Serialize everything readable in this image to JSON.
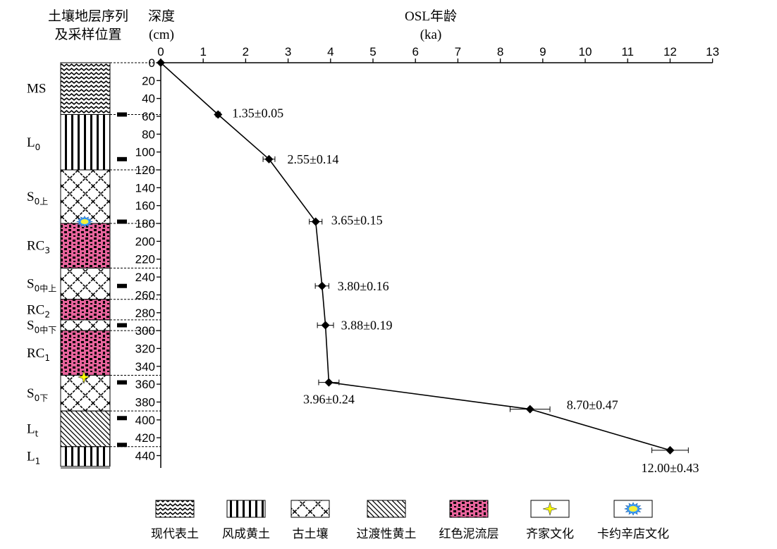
{
  "header": {
    "column_title_line1": "土壤地层序列",
    "column_title_line2": "及采样位置",
    "depth_title": "深度",
    "depth_unit": "(cm)",
    "age_title": "OSL年龄",
    "age_unit": "(ka)"
  },
  "chart_data": {
    "type": "line",
    "x_axis": {
      "label": "OSL年龄",
      "unit": "(ka)",
      "position": "top",
      "range": [
        0,
        13
      ],
      "ticks": [
        "0",
        "1",
        "2",
        "3",
        "4",
        "5",
        "6",
        "7",
        "8",
        "9",
        "10",
        "11",
        "12",
        "13"
      ]
    },
    "y_axis": {
      "label": "深度",
      "unit": "(cm)",
      "inverted": true,
      "range": [
        0,
        440
      ],
      "ticks": [
        "0",
        "20",
        "40",
        "60",
        "80",
        "100",
        "120",
        "140",
        "160",
        "180",
        "200",
        "220",
        "240",
        "260",
        "280",
        "300",
        "320",
        "340",
        "360",
        "380",
        "400",
        "420",
        "440"
      ]
    },
    "points": [
      {
        "depth": 0,
        "age": 0,
        "error": 0,
        "label": ""
      },
      {
        "depth": 58,
        "age": 1.35,
        "error": 0.05,
        "label": "1.35±0.05"
      },
      {
        "depth": 108,
        "age": 2.55,
        "error": 0.14,
        "label": "2.55±0.14"
      },
      {
        "depth": 178,
        "age": 3.65,
        "error": 0.15,
        "label": "3.65±0.15"
      },
      {
        "depth": 250,
        "age": 3.8,
        "error": 0.16,
        "label": "3.80±0.16"
      },
      {
        "depth": 294,
        "age": 3.88,
        "error": 0.19,
        "label": "3.88±0.19"
      },
      {
        "depth": 358,
        "age": 3.96,
        "error": 0.24,
        "label": "3.96±0.24"
      },
      {
        "depth": 388,
        "age": 8.7,
        "error": 0.47,
        "label": "8.70±0.47"
      },
      {
        "depth": 434,
        "age": 12.0,
        "error": 0.43,
        "label": "12.00±0.43"
      }
    ]
  },
  "strata": [
    {
      "name": "MS",
      "sub": "",
      "top": 0,
      "bottom": 58,
      "pattern": "modern"
    },
    {
      "name": "L",
      "sub": "0",
      "top": 58,
      "bottom": 120,
      "pattern": "loess"
    },
    {
      "name": "S",
      "sub": "0上",
      "top": 120,
      "bottom": 180,
      "pattern": "paleosol"
    },
    {
      "name": "RC",
      "sub": "3",
      "top": 180,
      "bottom": 230,
      "pattern": "red"
    },
    {
      "name": "S",
      "sub": "0中上",
      "top": 230,
      "bottom": 265,
      "pattern": "paleosol"
    },
    {
      "name": "RC",
      "sub": "2",
      "top": 265,
      "bottom": 288,
      "pattern": "red"
    },
    {
      "name": "S",
      "sub": "0中下",
      "top": 288,
      "bottom": 300,
      "pattern": "paleosol"
    },
    {
      "name": "RC",
      "sub": "1",
      "top": 300,
      "bottom": 350,
      "pattern": "red"
    },
    {
      "name": "S",
      "sub": "0下",
      "top": 350,
      "bottom": 390,
      "pattern": "paleosol"
    },
    {
      "name": "L",
      "sub": "t",
      "top": 390,
      "bottom": 430,
      "pattern": "transition"
    },
    {
      "name": "L",
      "sub": "1",
      "top": 430,
      "bottom": 452,
      "pattern": "loess"
    }
  ],
  "sample_depths": [
    58,
    108,
    178,
    250,
    294,
    358,
    398,
    428
  ],
  "culture_markers": [
    {
      "type": "kayue",
      "depth": 178
    },
    {
      "type": "qijia",
      "depth": 352
    }
  ],
  "legend": [
    {
      "pattern": "modern",
      "label": "现代表土"
    },
    {
      "pattern": "loess",
      "label": "风成黄土"
    },
    {
      "pattern": "paleosol",
      "label": "古土壤"
    },
    {
      "pattern": "transition",
      "label": "过渡性黄土"
    },
    {
      "pattern": "red",
      "label": "红色泥流层"
    },
    {
      "pattern": "qijia",
      "label": "齐家文化"
    },
    {
      "pattern": "kayue",
      "label": "卡约辛店文化"
    }
  ],
  "colors": {
    "red_layer": "#e8649c",
    "qijia_star": "#ffff00",
    "kayue_burst": "#3aa0ff",
    "kayue_core": "#f5f03a"
  }
}
